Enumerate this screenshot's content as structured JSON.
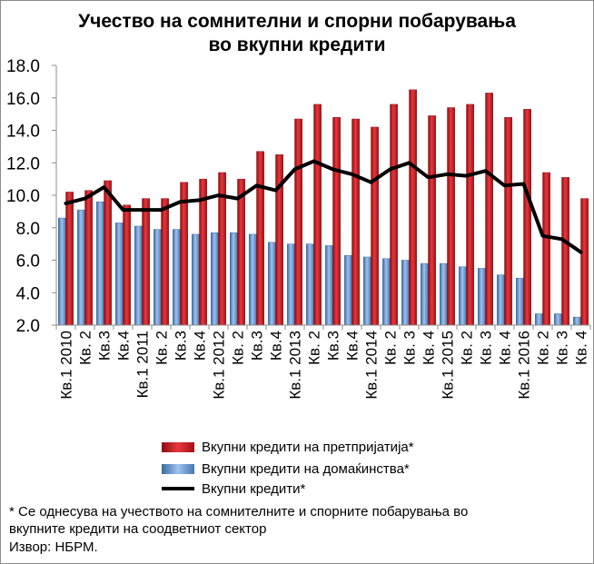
{
  "title_line1": "Учество на сомнителни и спорни побарувања",
  "title_line2": "во вкупни кредити",
  "chart_data": {
    "type": "bar",
    "categories": [
      "Кв.1 2010",
      "Кв. 2",
      "Кв.3",
      "Кв.4",
      "Кв.1 2011",
      "Кв. 2",
      "Кв.3",
      "Кв.4",
      "Кв.1 2012",
      "Кв. 2",
      "Кв.3",
      "Кв.4",
      "Кв.1 2013",
      "Кв. 2",
      "Кв.3",
      "Кв.4",
      "Кв.1 2014",
      "Кв. 2",
      "Кв. 3",
      "Кв. 4",
      "Кв.1 2015",
      "Кв. 2",
      "Кв. 3",
      "Кв. 4",
      "Кв.1 2016",
      "Кв. 2",
      "Кв. 3",
      "Кв. 4"
    ],
    "series": [
      {
        "name": "Вкупни кредити на претпријатија*",
        "kind": "bar",
        "color": "#c0151b",
        "values": [
          10.2,
          10.3,
          10.9,
          9.4,
          9.8,
          9.8,
          10.8,
          11.0,
          11.4,
          11.0,
          12.7,
          12.5,
          14.7,
          15.6,
          14.8,
          14.7,
          14.2,
          15.6,
          16.5,
          14.9,
          15.4,
          15.6,
          16.3,
          14.8,
          15.3,
          11.4,
          11.1,
          9.8
        ]
      },
      {
        "name": "Вкупни кредити на домаќинства*",
        "kind": "bar",
        "color": "#4f81bd",
        "values": [
          8.6,
          9.1,
          9.6,
          8.3,
          8.1,
          7.9,
          7.9,
          7.6,
          7.7,
          7.7,
          7.6,
          7.1,
          7.0,
          7.0,
          6.9,
          6.3,
          6.2,
          6.1,
          6.0,
          5.8,
          5.8,
          5.6,
          5.5,
          5.1,
          4.9,
          2.7,
          2.7,
          2.5
        ]
      },
      {
        "name": "Вкупни кредити*",
        "kind": "line",
        "color": "#000000",
        "values": [
          9.5,
          9.8,
          10.5,
          9.1,
          9.1,
          9.1,
          9.6,
          9.7,
          10.0,
          9.8,
          10.6,
          10.3,
          11.6,
          12.1,
          11.6,
          11.3,
          10.8,
          11.6,
          12.0,
          11.1,
          11.3,
          11.2,
          11.5,
          10.6,
          10.7,
          7.5,
          7.3,
          6.5
        ]
      }
    ],
    "ylim": [
      2.0,
      18.0
    ],
    "yticks": [
      "2.0",
      "4.0",
      "6.0",
      "8.0",
      "10.0",
      "12.0",
      "14.0",
      "16.0",
      "18.0"
    ],
    "xlabel": "",
    "ylabel": "",
    "legend_position": "bottom"
  },
  "footnote": {
    "line1": "* Се однесува на учеството на сомнителните и спорните побарувања во",
    "line2": "вкупните кредити на соодветниот сектор",
    "source": "Извор: НБРМ."
  }
}
